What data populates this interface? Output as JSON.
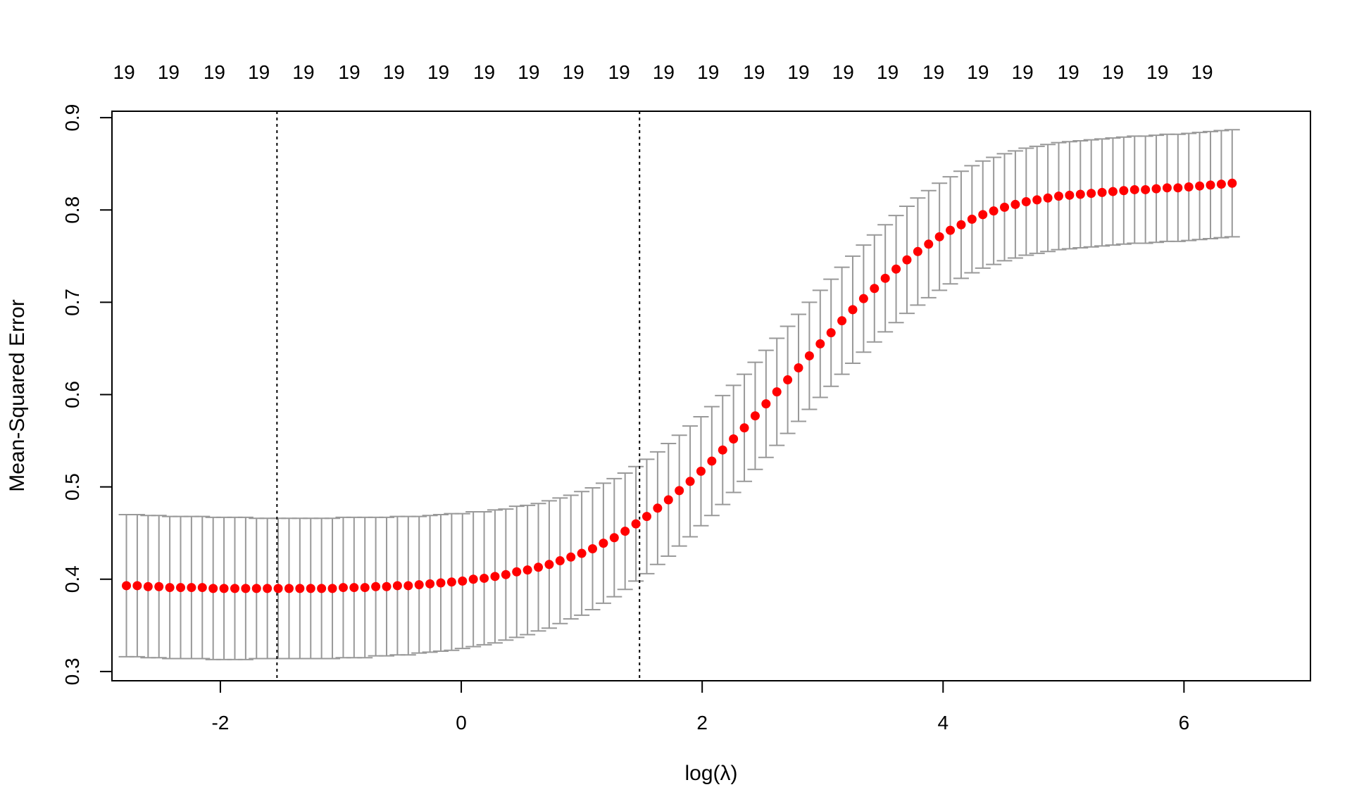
{
  "chart_data": {
    "type": "scatter",
    "title": "",
    "xlabel": "log(λ)",
    "ylabel": "Mean-Squared Error",
    "xlim": [
      -2.9,
      7.05
    ],
    "ylim": [
      0.29,
      0.907
    ],
    "xticks": [
      -2,
      0,
      2,
      4,
      6
    ],
    "xtick_labels": [
      "-2",
      "0",
      "2",
      "4",
      "6"
    ],
    "yticks": [
      0.3,
      0.4,
      0.5,
      0.6,
      0.7,
      0.8,
      0.9
    ],
    "ytick_labels": [
      "0.3",
      "0.4",
      "0.5",
      "0.6",
      "0.7",
      "0.8",
      "0.9"
    ],
    "grid": false,
    "point_color": "#ff0000",
    "errorbar_color": "#999999",
    "vlines": [
      -1.53,
      1.48
    ],
    "top_axis": {
      "x": [
        -2.8,
        -2.43,
        -2.05,
        -1.68,
        -1.31,
        -0.93,
        -0.56,
        -0.19,
        0.19,
        0.56,
        0.93,
        1.31,
        1.68,
        2.05,
        2.43,
        2.8,
        3.17,
        3.54,
        3.92,
        4.29,
        4.66,
        5.04,
        5.41,
        5.78,
        6.15
      ],
      "labels": [
        "19",
        "19",
        "19",
        "19",
        "19",
        "19",
        "19",
        "19",
        "19",
        "19",
        "19",
        "19",
        "19",
        "19",
        "19",
        "19",
        "19",
        "19",
        "19",
        "19",
        "19",
        "19",
        "19",
        "19",
        "19"
      ]
    },
    "series": [
      {
        "x": [
          -2.78,
          -2.69,
          -2.6,
          -2.51,
          -2.42,
          -2.33,
          -2.24,
          -2.15,
          -2.06,
          -1.97,
          -1.88,
          -1.79,
          -1.7,
          -1.61,
          -1.52,
          -1.43,
          -1.34,
          -1.25,
          -1.16,
          -1.07,
          -0.98,
          -0.89,
          -0.8,
          -0.71,
          -0.62,
          -0.53,
          -0.44,
          -0.35,
          -0.26,
          -0.17,
          -0.08,
          0.01,
          0.1,
          0.19,
          0.28,
          0.37,
          0.46,
          0.55,
          0.64,
          0.73,
          0.82,
          0.91,
          1.0,
          1.09,
          1.18,
          1.27,
          1.36,
          1.45,
          1.54,
          1.63,
          1.72,
          1.81,
          1.9,
          1.99,
          2.08,
          2.17,
          2.26,
          2.35,
          2.44,
          2.53,
          2.62,
          2.71,
          2.8,
          2.89,
          2.98,
          3.07,
          3.16,
          3.25,
          3.34,
          3.43,
          3.52,
          3.61,
          3.7,
          3.79,
          3.88,
          3.97,
          4.06,
          4.15,
          4.24,
          4.33,
          4.42,
          4.51,
          4.6,
          4.69,
          4.78,
          4.87,
          4.96,
          5.05,
          5.14,
          5.23,
          5.32,
          5.41,
          5.5,
          5.59,
          5.68,
          5.77,
          5.86,
          5.95,
          6.04,
          6.13,
          6.22,
          6.31,
          6.4
        ],
        "y": [
          0.393,
          0.393,
          0.392,
          0.392,
          0.391,
          0.391,
          0.391,
          0.391,
          0.39,
          0.39,
          0.39,
          0.39,
          0.39,
          0.39,
          0.39,
          0.39,
          0.39,
          0.39,
          0.39,
          0.39,
          0.391,
          0.391,
          0.391,
          0.392,
          0.392,
          0.393,
          0.393,
          0.394,
          0.395,
          0.396,
          0.397,
          0.398,
          0.4,
          0.401,
          0.403,
          0.405,
          0.408,
          0.41,
          0.413,
          0.416,
          0.42,
          0.424,
          0.428,
          0.433,
          0.439,
          0.445,
          0.452,
          0.46,
          0.468,
          0.477,
          0.486,
          0.496,
          0.506,
          0.517,
          0.528,
          0.54,
          0.552,
          0.564,
          0.577,
          0.59,
          0.603,
          0.616,
          0.629,
          0.642,
          0.655,
          0.667,
          0.68,
          0.692,
          0.704,
          0.715,
          0.726,
          0.736,
          0.746,
          0.755,
          0.763,
          0.771,
          0.778,
          0.784,
          0.79,
          0.795,
          0.799,
          0.803,
          0.806,
          0.809,
          0.811,
          0.813,
          0.815,
          0.816,
          0.817,
          0.818,
          0.819,
          0.82,
          0.821,
          0.822,
          0.822,
          0.823,
          0.824,
          0.824,
          0.825,
          0.826,
          0.827,
          0.828,
          0.829
        ],
        "err": [
          0.077,
          0.077,
          0.077,
          0.077,
          0.077,
          0.077,
          0.077,
          0.077,
          0.077,
          0.077,
          0.077,
          0.077,
          0.076,
          0.076,
          0.076,
          0.076,
          0.076,
          0.076,
          0.076,
          0.076,
          0.076,
          0.076,
          0.076,
          0.075,
          0.075,
          0.075,
          0.075,
          0.074,
          0.074,
          0.074,
          0.074,
          0.073,
          0.073,
          0.072,
          0.072,
          0.071,
          0.071,
          0.07,
          0.069,
          0.069,
          0.068,
          0.067,
          0.067,
          0.066,
          0.065,
          0.064,
          0.063,
          0.062,
          0.062,
          0.061,
          0.061,
          0.06,
          0.06,
          0.059,
          0.059,
          0.059,
          0.058,
          0.058,
          0.058,
          0.058,
          0.058,
          0.058,
          0.058,
          0.058,
          0.058,
          0.058,
          0.058,
          0.058,
          0.058,
          0.058,
          0.058,
          0.058,
          0.058,
          0.058,
          0.058,
          0.058,
          0.058,
          0.058,
          0.058,
          0.058,
          0.058,
          0.058,
          0.058,
          0.058,
          0.058,
          0.058,
          0.058,
          0.058,
          0.058,
          0.058,
          0.058,
          0.058,
          0.058,
          0.058,
          0.058,
          0.058,
          0.058,
          0.058,
          0.058,
          0.058,
          0.058,
          0.058,
          0.058
        ]
      }
    ]
  }
}
